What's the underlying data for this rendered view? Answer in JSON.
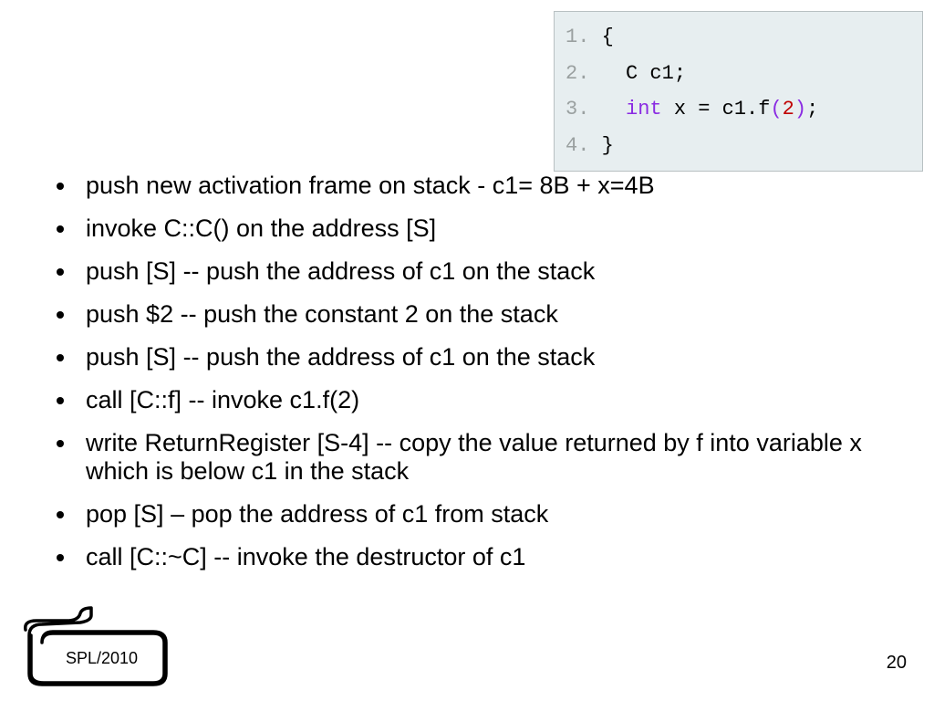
{
  "code_box": {
    "background_color": "#e7eef0",
    "border_color": "#b8c0c2",
    "font_family": "Courier New",
    "font_size": 22,
    "lines": [
      {
        "num": "1.",
        "tokens": [
          {
            "t": " {",
            "c": "plain"
          }
        ]
      },
      {
        "num": "2.",
        "tokens": [
          {
            "t": "   C c1;",
            "c": "plain"
          }
        ]
      },
      {
        "num": "3.",
        "tokens": [
          {
            "t": "   ",
            "c": "plain"
          },
          {
            "t": "int",
            "c": "kw"
          },
          {
            "t": " x = c1.f",
            "c": "plain"
          },
          {
            "t": "(",
            "c": "paren"
          },
          {
            "t": "2",
            "c": "num"
          },
          {
            "t": ")",
            "c": "paren"
          },
          {
            "t": ";",
            "c": "plain"
          }
        ]
      },
      {
        "num": "4.",
        "tokens": [
          {
            "t": " }",
            "c": "plain"
          }
        ]
      }
    ]
  },
  "bullets": [
    "push new activation frame on stack - c1= 8B + x=4B",
    "invoke C::C() on the address [S]",
    "push [S] -- push the address of c1 on the stack",
    "push $2 -- push the constant 2 on the stack",
    "push [S] -- push the address of c1 on the stack",
    "call [C::f] -- invoke c1.f(2)",
    "write ReturnRegister [S-4] -- copy the value returned by f into variable x which is below c1 in the stack",
    "pop [S] – pop the address of c1 from stack",
    "call [C::~C] -- invoke the destructor of c1"
  ],
  "bullet_style": {
    "font_size": 27,
    "color": "#000000",
    "dot_color": "#000000"
  },
  "footer": {
    "label": "SPL/2010",
    "page": "20"
  }
}
